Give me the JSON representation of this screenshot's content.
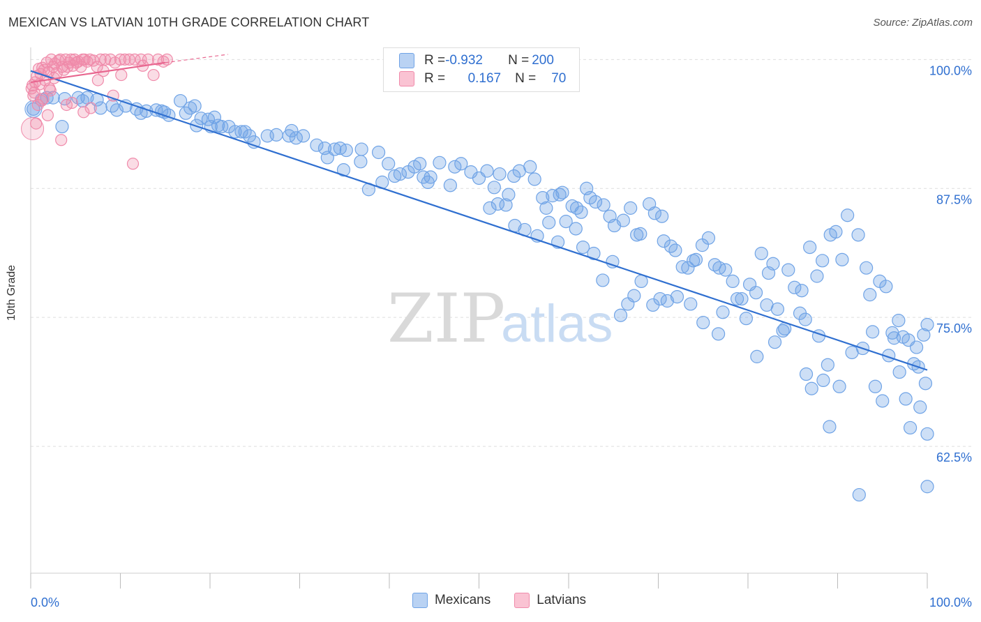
{
  "header": {
    "title": "MEXICAN VS LATVIAN 10TH GRADE CORRELATION CHART",
    "source": "Source: ZipAtlas.com"
  },
  "legend": {
    "rows": [
      {
        "r_label": "R = ",
        "r_value": "-0.932",
        "n_label": "N = ",
        "n_value": "200"
      },
      {
        "r_label": "R = ",
        "r_value": "0.167",
        "n_label": "N = ",
        "n_value": "70"
      }
    ]
  },
  "watermark": {
    "zip": "ZIP",
    "atlas": "atlas"
  },
  "colors": {
    "mexicans": "#6fa3e6",
    "latvians": "#f08aaa",
    "trend_blue": "#2f6fd0",
    "trend_pink": "#e8668f",
    "tick_label": "#2f6fd0"
  },
  "chart_data": {
    "type": "scatter",
    "title": "MEXICAN VS LATVIAN 10TH GRADE CORRELATION CHART",
    "xlabel": "",
    "ylabel": "10th Grade",
    "xlim": [
      0,
      100
    ],
    "ylim": [
      50.2,
      100.5
    ],
    "x_tick_labels": [
      "0.0%",
      "100.0%"
    ],
    "y_ticks": [
      100.0,
      87.5,
      75.0,
      62.5
    ],
    "y_tick_labels": [
      "100.0%",
      "87.5%",
      "75.0%",
      "62.5%"
    ],
    "grid": true,
    "legend_position": "bottom-center",
    "series": [
      {
        "name": "Mexicans",
        "points": [
          [
            0.3,
            95.2
          ],
          [
            1.2,
            96.1
          ],
          [
            1.8,
            96.3
          ],
          [
            2.5,
            96.3
          ],
          [
            3.5,
            93.5
          ],
          [
            3.8,
            96.2
          ],
          [
            5.3,
            96.3
          ],
          [
            5.8,
            96.0
          ],
          [
            6.3,
            96.3
          ],
          [
            7.4,
            96.1
          ],
          [
            7.8,
            95.3
          ],
          [
            9.1,
            95.5
          ],
          [
            9.6,
            95.1
          ],
          [
            10.6,
            95.5
          ],
          [
            11.8,
            95.2
          ],
          [
            12.3,
            94.8
          ],
          [
            12.9,
            95.0
          ],
          [
            14.0,
            95.1
          ],
          [
            14.6,
            95.0
          ],
          [
            14.9,
            94.9
          ],
          [
            15.4,
            94.6
          ],
          [
            16.7,
            96.0
          ],
          [
            17.3,
            94.8
          ],
          [
            17.8,
            95.3
          ],
          [
            18.3,
            95.5
          ],
          [
            18.5,
            93.6
          ],
          [
            19.0,
            94.3
          ],
          [
            19.8,
            94.2
          ],
          [
            20.1,
            93.5
          ],
          [
            20.5,
            94.4
          ],
          [
            20.9,
            93.6
          ],
          [
            21.3,
            93.5
          ],
          [
            22.1,
            93.5
          ],
          [
            22.8,
            93.0
          ],
          [
            23.5,
            93.0
          ],
          [
            23.9,
            93.0
          ],
          [
            24.4,
            92.6
          ],
          [
            24.9,
            92.0
          ],
          [
            26.4,
            92.6
          ],
          [
            27.4,
            92.7
          ],
          [
            28.8,
            92.6
          ],
          [
            29.1,
            93.1
          ],
          [
            29.6,
            92.4
          ],
          [
            30.4,
            92.6
          ],
          [
            31.9,
            91.7
          ],
          [
            32.8,
            91.4
          ],
          [
            33.1,
            90.5
          ],
          [
            33.9,
            91.3
          ],
          [
            34.5,
            91.4
          ],
          [
            34.9,
            89.3
          ],
          [
            35.2,
            91.2
          ],
          [
            36.8,
            90.1
          ],
          [
            36.9,
            91.3
          ],
          [
            37.7,
            87.4
          ],
          [
            38.8,
            91.0
          ],
          [
            39.2,
            88.1
          ],
          [
            39.9,
            89.9
          ],
          [
            40.6,
            88.7
          ],
          [
            41.2,
            88.9
          ],
          [
            42.1,
            89.1
          ],
          [
            42.8,
            89.6
          ],
          [
            43.4,
            89.9
          ],
          [
            43.8,
            88.6
          ],
          [
            44.3,
            88.1
          ],
          [
            44.6,
            88.6
          ],
          [
            45.6,
            90.0
          ],
          [
            46.8,
            87.8
          ],
          [
            47.3,
            89.6
          ],
          [
            48.0,
            89.9
          ],
          [
            49.1,
            89.1
          ],
          [
            50.0,
            88.5
          ],
          [
            50.9,
            89.2
          ],
          [
            51.7,
            87.6
          ],
          [
            52.3,
            88.9
          ],
          [
            53.3,
            86.9
          ],
          [
            53.9,
            88.7
          ],
          [
            54.5,
            89.2
          ],
          [
            55.7,
            89.6
          ],
          [
            56.2,
            88.4
          ],
          [
            57.1,
            86.6
          ],
          [
            57.5,
            85.6
          ],
          [
            58.2,
            86.8
          ],
          [
            59.0,
            86.9
          ],
          [
            59.3,
            87.1
          ],
          [
            60.4,
            85.8
          ],
          [
            60.9,
            85.6
          ],
          [
            61.4,
            85.2
          ],
          [
            62.0,
            87.5
          ],
          [
            62.4,
            86.6
          ],
          [
            63.0,
            86.2
          ],
          [
            63.9,
            85.9
          ],
          [
            64.6,
            84.8
          ],
          [
            65.1,
            83.9
          ],
          [
            66.1,
            84.4
          ],
          [
            66.9,
            85.6
          ],
          [
            67.6,
            83.0
          ],
          [
            68.0,
            83.1
          ],
          [
            69.0,
            86.0
          ],
          [
            69.6,
            85.1
          ],
          [
            70.4,
            84.8
          ],
          [
            70.6,
            82.4
          ],
          [
            71.4,
            81.9
          ],
          [
            71.9,
            81.5
          ],
          [
            72.7,
            79.9
          ],
          [
            73.3,
            79.8
          ],
          [
            73.9,
            80.5
          ],
          [
            74.2,
            80.6
          ],
          [
            74.9,
            82.0
          ],
          [
            75.6,
            82.7
          ],
          [
            76.3,
            80.1
          ],
          [
            76.8,
            79.8
          ],
          [
            77.5,
            79.6
          ],
          [
            78.3,
            78.5
          ],
          [
            78.8,
            76.8
          ],
          [
            79.3,
            76.8
          ],
          [
            80.2,
            78.2
          ],
          [
            80.9,
            77.4
          ],
          [
            81.5,
            81.2
          ],
          [
            82.3,
            79.3
          ],
          [
            82.8,
            80.2
          ],
          [
            83.3,
            75.8
          ],
          [
            83.9,
            73.7
          ],
          [
            84.5,
            79.6
          ],
          [
            85.2,
            77.9
          ],
          [
            86.0,
            77.6
          ],
          [
            86.9,
            81.8
          ],
          [
            87.7,
            79.0
          ],
          [
            88.3,
            80.5
          ],
          [
            89.2,
            83.0
          ],
          [
            89.8,
            83.3
          ],
          [
            90.5,
            80.6
          ],
          [
            91.1,
            84.9
          ],
          [
            92.3,
            83.0
          ],
          [
            93.2,
            79.8
          ],
          [
            93.9,
            73.6
          ],
          [
            94.7,
            78.5
          ],
          [
            95.4,
            78.0
          ],
          [
            96.1,
            73.5
          ],
          [
            96.8,
            74.7
          ],
          [
            97.3,
            73.1
          ],
          [
            97.9,
            72.8
          ],
          [
            98.5,
            70.5
          ],
          [
            99.0,
            70.2
          ],
          [
            99.6,
            73.3
          ],
          [
            100.0,
            74.3
          ],
          [
            92.8,
            72.0
          ],
          [
            93.6,
            77.2
          ],
          [
            94.2,
            68.3
          ],
          [
            95.0,
            66.9
          ],
          [
            95.7,
            71.3
          ],
          [
            96.3,
            73.0
          ],
          [
            96.9,
            69.7
          ],
          [
            97.6,
            67.1
          ],
          [
            98.1,
            64.3
          ],
          [
            98.8,
            72.1
          ],
          [
            99.2,
            66.3
          ],
          [
            99.8,
            68.6
          ],
          [
            100.0,
            63.7
          ],
          [
            100.0,
            58.6
          ],
          [
            92.4,
            57.8
          ],
          [
            86.5,
            69.5
          ],
          [
            87.1,
            68.1
          ],
          [
            88.4,
            68.9
          ],
          [
            89.1,
            64.4
          ],
          [
            90.2,
            68.3
          ],
          [
            91.6,
            71.6
          ],
          [
            83.0,
            72.6
          ],
          [
            84.1,
            73.9
          ],
          [
            85.8,
            75.4
          ],
          [
            86.4,
            74.8
          ],
          [
            87.9,
            73.2
          ],
          [
            88.9,
            70.4
          ],
          [
            76.7,
            73.4
          ],
          [
            77.2,
            75.5
          ],
          [
            79.8,
            74.9
          ],
          [
            81.0,
            71.2
          ],
          [
            82.1,
            76.2
          ],
          [
            75.0,
            74.5
          ],
          [
            73.6,
            76.3
          ],
          [
            72.1,
            77.0
          ],
          [
            71.0,
            76.6
          ],
          [
            70.2,
            76.8
          ],
          [
            69.4,
            76.2
          ],
          [
            68.1,
            78.5
          ],
          [
            67.3,
            77.1
          ],
          [
            66.6,
            76.3
          ],
          [
            65.8,
            75.2
          ],
          [
            64.9,
            80.4
          ],
          [
            63.8,
            78.6
          ],
          [
            62.8,
            81.2
          ],
          [
            61.6,
            81.8
          ],
          [
            60.8,
            83.6
          ],
          [
            59.7,
            84.3
          ],
          [
            58.8,
            82.3
          ],
          [
            57.8,
            84.2
          ],
          [
            56.5,
            82.9
          ],
          [
            55.1,
            83.5
          ],
          [
            54.0,
            83.9
          ],
          [
            53.0,
            85.9
          ],
          [
            52.1,
            86.0
          ],
          [
            51.2,
            85.6
          ]
        ]
      },
      {
        "name": "Latvians",
        "points": [
          [
            0.2,
            97.5
          ],
          [
            0.4,
            96.8
          ],
          [
            0.5,
            97.8
          ],
          [
            0.7,
            98.4
          ],
          [
            0.8,
            95.6
          ],
          [
            1.0,
            97.6
          ],
          [
            1.1,
            98.6
          ],
          [
            1.3,
            99.2
          ],
          [
            1.5,
            99.0
          ],
          [
            1.6,
            98.0
          ],
          [
            1.8,
            99.7
          ],
          [
            2.0,
            98.8
          ],
          [
            2.1,
            97.2
          ],
          [
            2.3,
            100.0
          ],
          [
            2.5,
            99.3
          ],
          [
            2.7,
            99.6
          ],
          [
            2.9,
            98.7
          ],
          [
            3.1,
            99.9
          ],
          [
            3.3,
            100.0
          ],
          [
            3.5,
            99.3
          ],
          [
            3.7,
            99.0
          ],
          [
            3.9,
            100.0
          ],
          [
            4.1,
            99.3
          ],
          [
            4.3,
            99.7
          ],
          [
            4.5,
            100.0
          ],
          [
            4.7,
            99.4
          ],
          [
            4.9,
            100.0
          ],
          [
            5.1,
            99.7
          ],
          [
            5.3,
            99.8
          ],
          [
            5.6,
            99.3
          ],
          [
            5.8,
            100.0
          ],
          [
            6.0,
            100.0
          ],
          [
            6.3,
            99.8
          ],
          [
            6.6,
            100.0
          ],
          [
            7.0,
            99.9
          ],
          [
            7.4,
            99.3
          ],
          [
            7.8,
            100.0
          ],
          [
            8.3,
            100.0
          ],
          [
            8.9,
            100.0
          ],
          [
            9.4,
            99.7
          ],
          [
            10.0,
            100.0
          ],
          [
            10.5,
            100.0
          ],
          [
            11.0,
            100.0
          ],
          [
            11.6,
            100.0
          ],
          [
            12.3,
            100.0
          ],
          [
            13.1,
            100.0
          ],
          [
            14.2,
            100.0
          ],
          [
            14.8,
            99.8
          ],
          [
            15.2,
            100.0
          ],
          [
            0.3,
            96.5
          ],
          [
            0.6,
            93.8
          ],
          [
            1.2,
            96.0
          ],
          [
            1.9,
            94.6
          ],
          [
            2.6,
            98.2
          ],
          [
            3.4,
            92.2
          ],
          [
            4.0,
            95.6
          ],
          [
            4.6,
            95.8
          ],
          [
            5.9,
            94.9
          ],
          [
            6.7,
            95.3
          ],
          [
            7.5,
            98.0
          ],
          [
            8.1,
            98.9
          ],
          [
            9.2,
            96.5
          ],
          [
            10.1,
            98.5
          ],
          [
            11.4,
            89.9
          ],
          [
            12.5,
            99.4
          ],
          [
            13.7,
            98.5
          ],
          [
            0.9,
            99.1
          ],
          [
            1.4,
            96.2
          ],
          [
            2.2,
            97.0
          ],
          [
            0.1,
            97.2
          ]
        ]
      }
    ],
    "trendlines": [
      {
        "series": "Mexicans",
        "x": [
          0,
          100
        ],
        "y": [
          98.9,
          69.9
        ]
      },
      {
        "series": "Latvians",
        "x": [
          0,
          15
        ],
        "y": [
          97.8,
          99.7
        ],
        "dashed_extension_to": [
          22,
          100.5
        ]
      }
    ]
  }
}
